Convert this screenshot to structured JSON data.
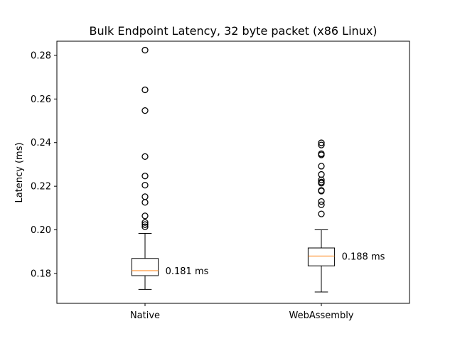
{
  "chart_data": {
    "type": "box",
    "title": "Bulk Endpoint Latency, 32 byte packet (x86 Linux)",
    "xlabel": "",
    "ylabel": "Latency (ms)",
    "ylim": [
      0.1663,
      0.2865
    ],
    "yticks": [
      0.18,
      0.2,
      0.22,
      0.24,
      0.26,
      0.28
    ],
    "ytick_labels": [
      "0.18",
      "0.20",
      "0.22",
      "0.24",
      "0.26",
      "0.28"
    ],
    "grid": false,
    "legend": "none",
    "colors": {
      "box": "#000000",
      "median": "#ff7f0e",
      "outlier": "#000000"
    },
    "categories": [
      "Native",
      "WebAssembly"
    ],
    "boxes": [
      {
        "category": "Native",
        "whisker_low": 0.1727,
        "q1": 0.179,
        "median": 0.1813,
        "q3": 0.1869,
        "whisker_high": 0.1984,
        "outliers": [
          0.2824,
          0.2642,
          0.2547,
          0.2336,
          0.2247,
          0.2205,
          0.2152,
          0.2126,
          0.2064,
          0.2034,
          0.2024,
          0.2014
        ],
        "annotation": "0.181 ms"
      },
      {
        "category": "WebAssembly",
        "whisker_low": 0.1715,
        "q1": 0.1835,
        "median": 0.188,
        "q3": 0.1917,
        "whisker_high": 0.2,
        "outliers": [
          0.2399,
          0.2389,
          0.2349,
          0.2344,
          0.2292,
          0.2254,
          0.2229,
          0.2219,
          0.2214,
          0.2181,
          0.2178,
          0.213,
          0.2115,
          0.2073
        ],
        "annotation": "0.188 ms"
      }
    ]
  }
}
